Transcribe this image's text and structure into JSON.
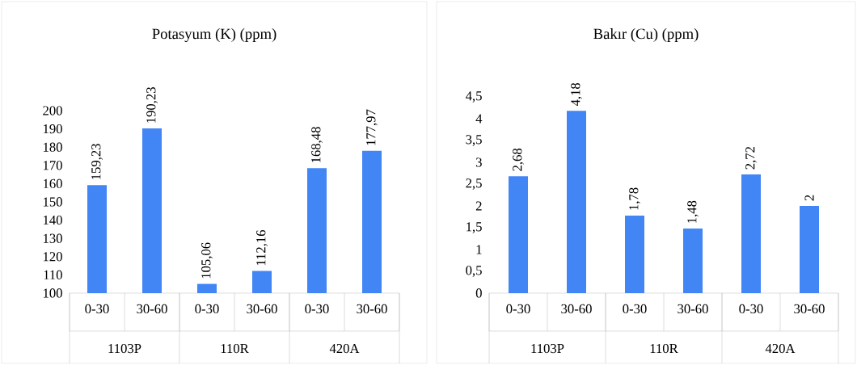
{
  "chart_data": [
    {
      "type": "bar",
      "title": "Potasyum (K) (ppm)",
      "categories": [
        "0-30",
        "30-60",
        "0-30",
        "30-60",
        "0-30",
        "30-60"
      ],
      "values": [
        159.23,
        190.23,
        105.06,
        112.16,
        168.48,
        177.97
      ],
      "value_labels": [
        "159,23",
        "190,23",
        "105,06",
        "112,16",
        "168,48",
        "177,97"
      ],
      "color": "#4285f4",
      "ylim": [
        100,
        200
      ],
      "yticks": [
        100,
        110,
        120,
        130,
        140,
        150,
        160,
        170,
        180,
        190,
        200
      ],
      "annotations": [
        "1103P",
        "110R",
        "420A"
      ]
    },
    {
      "type": "bar",
      "title": "Bakır (Cu) (ppm)",
      "categories": [
        "0-30",
        "30-60",
        "0-30",
        "30-60",
        "0-30",
        "30-60"
      ],
      "values": [
        2.68,
        4.18,
        1.78,
        1.48,
        2.72,
        2
      ],
      "value_labels": [
        "2,68",
        "4,18",
        "1,78",
        "1,48",
        "2,72",
        "2"
      ],
      "color": "#4285f4",
      "ylim": [
        0,
        4.5
      ],
      "yticks": [
        0,
        {
          "value": 0.5,
          "label": "0,5"
        },
        1,
        {
          "value": 1.5,
          "label": "1,5"
        },
        2,
        {
          "value": 2.5,
          "label": "2,5"
        },
        3,
        {
          "value": 3.5,
          "label": "3,5"
        },
        4,
        {
          "value": 4.5,
          "label": "4,5"
        }
      ],
      "annotations": [
        "1103P",
        "110R",
        "420A"
      ]
    }
  ]
}
